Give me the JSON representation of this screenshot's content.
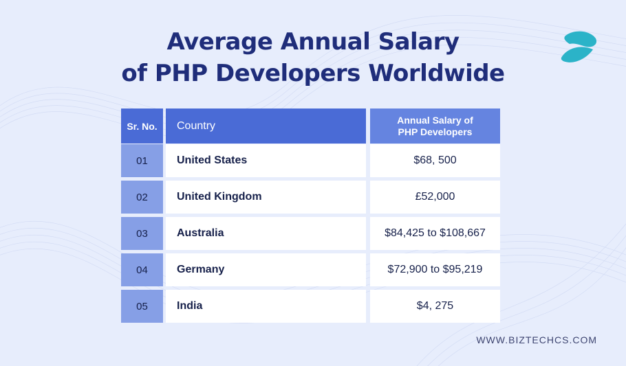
{
  "title": {
    "line1": "Average Annual Salary",
    "line2": "of PHP Developers Worldwide"
  },
  "colors": {
    "title": "#1f2d7a",
    "header_bg": "#4a6bd6",
    "header_salary_bg": "#6584e0",
    "number_cell_bg": "#869fe6",
    "cell_bg": "#ffffff",
    "logo": "#2bb3c8"
  },
  "logo_icon": "biztech-logo-icon",
  "chart_data": {
    "type": "table",
    "columns": [
      "Sr. No.",
      "Country",
      "Annual Salary of PHP Developers"
    ],
    "rows": [
      [
        "01",
        "United States",
        "$68, 500"
      ],
      [
        "02",
        "United Kingdom",
        "£52,000"
      ],
      [
        "03",
        "Australia",
        "$84,425 to $108,667"
      ],
      [
        "04",
        "Germany",
        "$72,900 to $95,219"
      ],
      [
        "05",
        "India",
        "$4, 275"
      ]
    ]
  },
  "footer": {
    "website": "WWW.BIZTECHCS.COM"
  }
}
